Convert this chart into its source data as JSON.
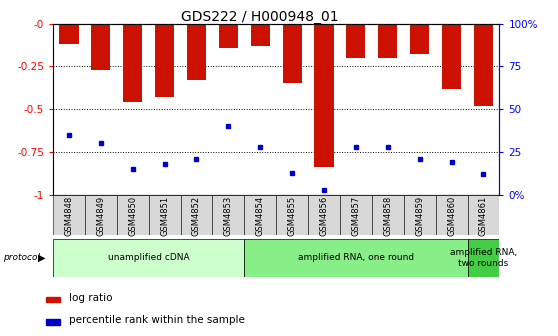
{
  "title": "GDS222 / H000948_01",
  "samples": [
    "GSM4848",
    "GSM4849",
    "GSM4850",
    "GSM4851",
    "GSM4852",
    "GSM4853",
    "GSM4854",
    "GSM4855",
    "GSM4856",
    "GSM4857",
    "GSM4858",
    "GSM4859",
    "GSM4860",
    "GSM4861"
  ],
  "log_ratio": [
    -0.12,
    -0.27,
    -0.46,
    -0.43,
    -0.33,
    -0.14,
    -0.13,
    -0.35,
    -0.84,
    -0.2,
    -0.2,
    -0.18,
    -0.38,
    -0.48
  ],
  "percentile_pct": [
    35,
    30,
    15,
    18,
    21,
    40,
    28,
    13,
    3,
    28,
    28,
    21,
    19,
    12
  ],
  "protocols": [
    {
      "label": "unamplified cDNA",
      "start": 0,
      "end": 6,
      "color": "#ccffcc"
    },
    {
      "label": "amplified RNA, one round",
      "start": 6,
      "end": 13,
      "color": "#88ee88"
    },
    {
      "label": "amplified RNA,\ntwo rounds",
      "start": 13,
      "end": 14,
      "color": "#44cc44"
    }
  ],
  "bar_color": "#cc1100",
  "dot_color": "#0000cc",
  "ylim_left": [
    -1.0,
    0.0
  ],
  "ylim_right": [
    0,
    100
  ],
  "yticks_left": [
    0.0,
    -0.25,
    -0.5,
    -0.75,
    -1.0
  ],
  "yticks_right": [
    0,
    25,
    50,
    75,
    100
  ],
  "ytick_labels_left": [
    "-0",
    "-0.25",
    "-0.5",
    "-0.75",
    "-1"
  ],
  "ytick_labels_right": [
    "0%",
    "25",
    "50",
    "75",
    "100%"
  ],
  "bg_color": "#ffffff",
  "title_fontsize": 10,
  "xtick_bg": "#d8d8d8",
  "legend_items": [
    {
      "label": "log ratio",
      "color": "#cc1100"
    },
    {
      "label": "percentile rank within the sample",
      "color": "#0000cc"
    }
  ]
}
